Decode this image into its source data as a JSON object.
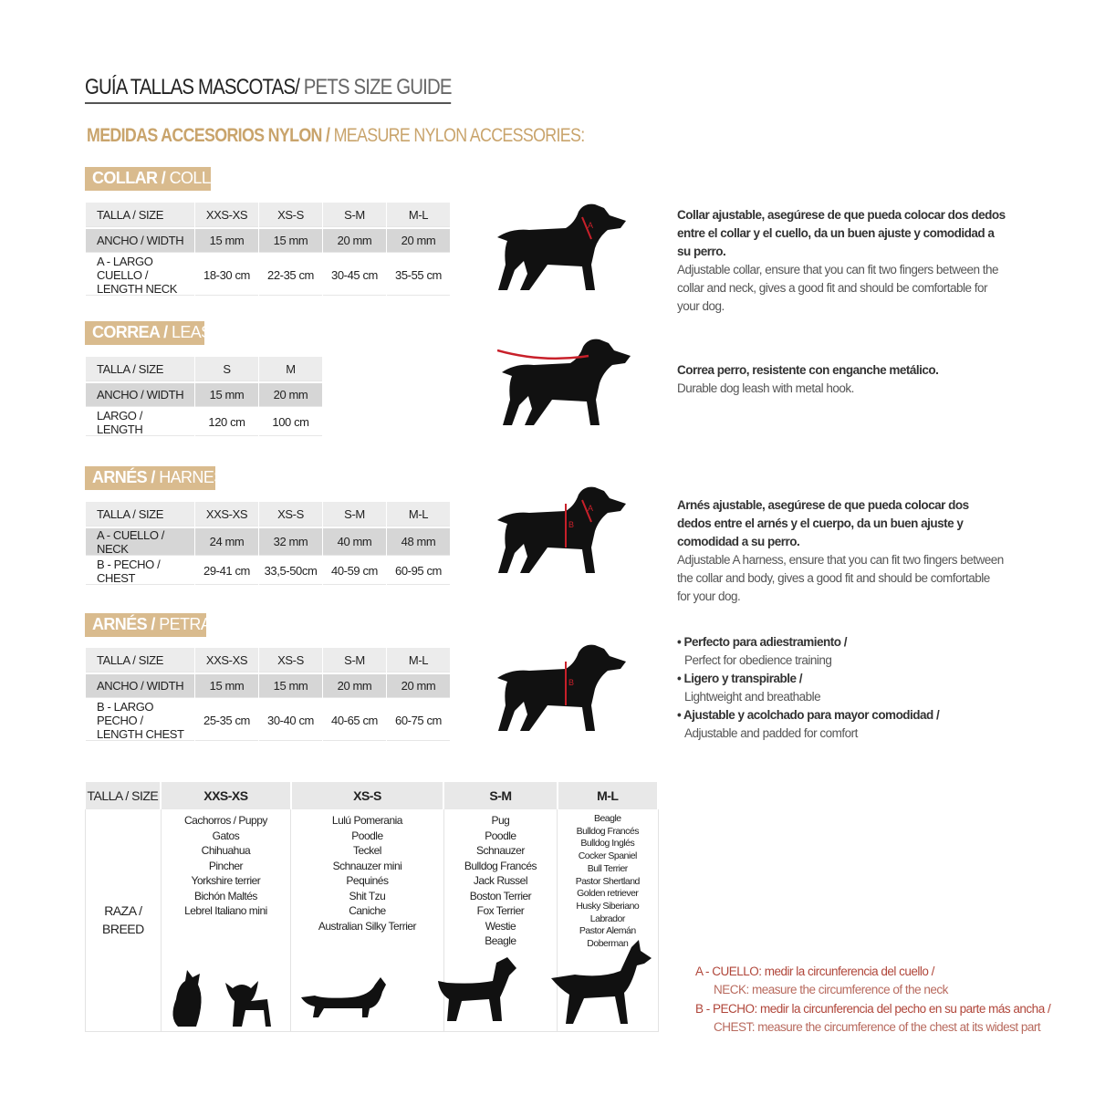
{
  "title": {
    "es": "GUÍA TALLAS MASCOTAS/",
    "en": " PETS SIZE GUIDE"
  },
  "subtitle": {
    "es": "MEDIDAS ACCESORIOS NYLON /",
    "en": " MEASURE NYLON ACCESSORIES:"
  },
  "collar": {
    "label_es": "COLLAR /",
    "label_en": " COLLAR",
    "rows": [
      [
        "TALLA / SIZE",
        "XXS-XS",
        "XS-S",
        "S-M",
        "M-L"
      ],
      [
        "ANCHO / WIDTH",
        "15 mm",
        "15 mm",
        "20 mm",
        "20 mm"
      ],
      [
        "A - LARGO CUELLO / LENGTH NECK",
        "18-30 cm",
        "22-35 cm",
        "30-45 cm",
        "35-55 cm"
      ]
    ],
    "desc_es": "Collar ajustable, asegúrese de que pueda colocar dos dedos entre el collar y el cuello, da un buen ajuste y comodidad a su perro.",
    "desc_en": "Adjustable collar, ensure that you can fit two fingers between the collar and neck, gives a good fit and should be comfortable for your dog."
  },
  "leash": {
    "label_es": "CORREA /",
    "label_en": " LEASH",
    "rows": [
      [
        "TALLA / SIZE",
        "S",
        "M"
      ],
      [
        "ANCHO / WIDTH",
        "15 mm",
        "20 mm"
      ],
      [
        "LARGO / LENGTH",
        "120 cm",
        "100 cm"
      ]
    ],
    "desc_es": "Correa perro, resistente con enganche metálico.",
    "desc_en": "Durable dog leash with metal hook."
  },
  "harness": {
    "label_es": "ARNÉS /",
    "label_en": " HARNESS",
    "rows": [
      [
        "TALLA / SIZE",
        "XXS-XS",
        "XS-S",
        "S-M",
        "M-L"
      ],
      [
        "A - CUELLO / NECK",
        "24 mm",
        "32 mm",
        "40 mm",
        "48 mm"
      ],
      [
        "B - PECHO / CHEST",
        "29-41 cm",
        "33,5-50cm",
        "40-59 cm",
        "60-95 cm"
      ]
    ],
    "desc_es": "Arnés ajustable, asegúrese de que pueda colocar dos dedos entre el arnés y el cuerpo, da un buen ajuste y comodidad a su perro.",
    "desc_en": "Adjustable A harness, ensure that you can fit two fingers between the collar and body, gives a good fit and should be comfortable for your dog."
  },
  "petral": {
    "label_es": "ARNÉS /",
    "label_en": " PETRAL",
    "rows": [
      [
        "TALLA / SIZE",
        "XXS-XS",
        "XS-S",
        "S-M",
        "M-L"
      ],
      [
        "ANCHO / WIDTH",
        "15 mm",
        "15 mm",
        "20 mm",
        "20 mm"
      ],
      [
        "B - LARGO PECHO / LENGTH CHEST",
        "25-35 cm",
        "30-40 cm",
        "40-65 cm",
        "60-75 cm"
      ]
    ],
    "bullets": [
      {
        "es": "• Perfecto para adiestramiento /",
        "en": "Perfect for obedience training"
      },
      {
        "es": "• Ligero y transpirable /",
        "en": "Lightweight and breathable"
      },
      {
        "es": "• Ajustable y acolchado para mayor comodidad /",
        "en": "Adjustable and padded for comfort"
      }
    ]
  },
  "breeds": {
    "header": [
      "TALLA /  SIZE",
      "XXS-XS",
      "XS-S",
      "S-M",
      "M-L"
    ],
    "row_label": "RAZA / BREED",
    "lists": [
      [
        "Cachorros / Puppy",
        "Gatos",
        "Chihuahua",
        "Pincher",
        "Yorkshire terrier",
        "Bichón Maltés",
        "Lebrel Italiano mini"
      ],
      [
        "Lulú Pomerania",
        "Poodle",
        "Teckel",
        "Schnauzer mini",
        "Pequinés",
        "Shit Tzu",
        "Caniche",
        "Australian Silky Terrier"
      ],
      [
        "Pug",
        "Poodle",
        "Schnauzer",
        "Bulldog Francés",
        "Jack Russel",
        "Boston Terrier",
        "Fox Terrier",
        "Westie",
        "Beagle"
      ],
      [
        "Beagle",
        "Bulldog Francés",
        "Bulldog Inglés",
        "Cocker Spaniel",
        "Bull Terrier",
        "Pastor Shertland",
        "Golden retriever",
        "Husky Siberiano",
        "Labrador",
        "Pastor Alemán",
        "Doberman"
      ]
    ]
  },
  "notes": [
    {
      "es": "A - CUELLO: medir la circunferencia del cuello /",
      "en": "NECK: measure the circumference of the neck"
    },
    {
      "es": "B - PECHO: medir la circunferencia del pecho en su parte más ancha /",
      "en": "CHEST: measure the circumference of the chest at its widest part"
    }
  ],
  "colors": {
    "gold": "#d9bb8e",
    "measure_red": "#c8202a",
    "note_red": "#b0463a"
  }
}
